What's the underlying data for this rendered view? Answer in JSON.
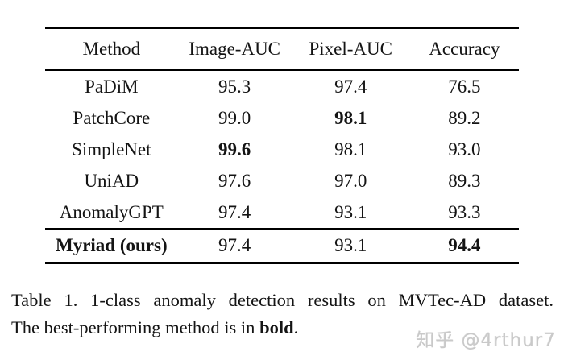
{
  "page": {
    "background": "#ffffff",
    "text_color": "#141414",
    "rule_color": "#000000"
  },
  "table": {
    "columns": [
      "Method",
      "Image-AUC",
      "Pixel-AUC",
      "Accuracy"
    ],
    "rows": [
      {
        "cells": [
          "PaDiM",
          "95.3",
          "97.4",
          "76.5"
        ]
      },
      {
        "cells": [
          "PatchCore",
          "99.0",
          "98.1",
          "89.2"
        ]
      },
      {
        "cells": [
          "SimpleNet",
          "99.6",
          "98.1",
          "93.0"
        ]
      },
      {
        "cells": [
          "UniAD",
          "97.6",
          "97.0",
          "89.3"
        ]
      },
      {
        "cells": [
          "AnomalyGPT",
          "97.4",
          "93.1",
          "93.3"
        ]
      }
    ],
    "ours_row": {
      "cells": [
        "Myriad (ours)",
        "97.4",
        "93.1",
        "94.4"
      ]
    },
    "best_values": {
      "image_auc": "99.6",
      "pixel_auc": "98.1",
      "accuracy": "94.4"
    }
  },
  "caption": {
    "line1": "Table 1. 1-class anomaly detection results on MVTec-AD dataset.",
    "line2_prefix": "The best-performing method is in ",
    "line2_bold_word": "bold",
    "line2_suffix": "."
  },
  "watermark": {
    "text": "知乎 @4rthur7",
    "color": "#c9c9c9"
  }
}
